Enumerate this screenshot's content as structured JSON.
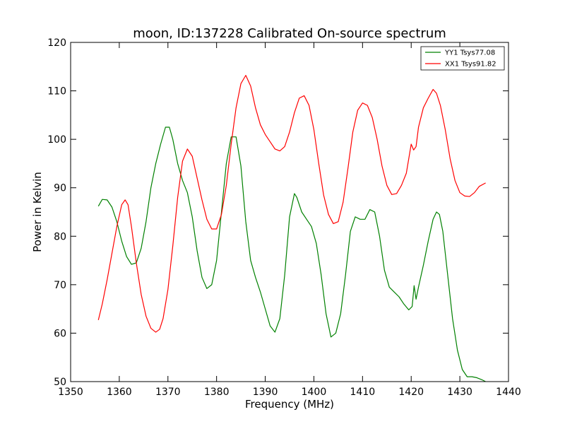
{
  "chart_data": {
    "type": "line",
    "title": "moon, ID:137228 Calibrated On-source spectrum",
    "xlabel": "Frequency (MHz)",
    "ylabel": "Power in Kelvin",
    "xlim": [
      1350,
      1440
    ],
    "ylim": [
      50,
      120
    ],
    "xticks": [
      1350,
      1360,
      1370,
      1380,
      1390,
      1400,
      1410,
      1420,
      1430,
      1440
    ],
    "yticks": [
      50,
      60,
      70,
      80,
      90,
      100,
      110,
      120
    ],
    "grid": false,
    "legend_position": "top-right",
    "series": [
      {
        "name": "YY1 Tsys77.08",
        "color": "#008000",
        "x": [
          1355.7,
          1356.5,
          1357.5,
          1358.5,
          1359.5,
          1360.5,
          1361.5,
          1362.5,
          1363.5,
          1364.5,
          1365.5,
          1366.5,
          1367.5,
          1368.5,
          1369.5,
          1370.3,
          1371.0,
          1372.0,
          1373.0,
          1374.0,
          1375.0,
          1376.0,
          1377.0,
          1378.0,
          1379.0,
          1380.0,
          1381.0,
          1382.0,
          1383.0,
          1384.0,
          1385.0,
          1386.0,
          1387.0,
          1388.0,
          1389.0,
          1390.0,
          1391.0,
          1392.0,
          1393.0,
          1394.0,
          1395.0,
          1396.0,
          1396.5,
          1397.5,
          1398.5,
          1399.5,
          1400.5,
          1401.5,
          1402.5,
          1403.5,
          1404.5,
          1405.5,
          1406.5,
          1407.5,
          1408.5,
          1409.5,
          1410.5,
          1411.5,
          1412.5,
          1413.5,
          1414.5,
          1415.5,
          1416.5,
          1417.5,
          1418.5,
          1419.5,
          1420.2,
          1420.6,
          1421.0,
          1421.5,
          1422.5,
          1423.5,
          1424.5,
          1425.2,
          1425.8,
          1426.5,
          1427.5,
          1428.5,
          1429.5,
          1430.5,
          1431.5,
          1432.5,
          1433.5,
          1434.5,
          1435.3
        ],
        "values": [
          86.2,
          87.6,
          87.5,
          86.0,
          83.0,
          79.0,
          75.8,
          74.2,
          74.5,
          77.5,
          83.0,
          90.0,
          95.0,
          99.0,
          102.5,
          102.5,
          100.0,
          95.0,
          91.5,
          89.0,
          84.0,
          77.0,
          71.5,
          69.2,
          70.0,
          75.0,
          85.0,
          95.0,
          100.5,
          100.5,
          94.5,
          83.0,
          75.0,
          71.5,
          68.5,
          65.0,
          61.5,
          60.2,
          63.0,
          72.0,
          84.0,
          88.8,
          88.0,
          85.0,
          83.5,
          82.0,
          78.5,
          72.0,
          64.0,
          59.2,
          60.0,
          64.0,
          72.0,
          81.0,
          84.0,
          83.5,
          83.5,
          85.5,
          85.0,
          80.0,
          73.0,
          69.5,
          68.5,
          67.5,
          66.0,
          64.8,
          65.5,
          69.8,
          67.0,
          69.5,
          74.0,
          79.0,
          83.5,
          85.0,
          84.5,
          81.0,
          72.0,
          63.0,
          56.5,
          52.5,
          51.0,
          51.0,
          50.8,
          50.4,
          50.0
        ]
      },
      {
        "name": "XX1 Tsys91.82",
        "color": "#ff0000",
        "x": [
          1355.7,
          1356.5,
          1357.5,
          1358.5,
          1359.5,
          1360.5,
          1361.2,
          1361.8,
          1362.5,
          1363.5,
          1364.5,
          1365.5,
          1366.5,
          1367.5,
          1368.3,
          1369.0,
          1370.0,
          1371.0,
          1372.0,
          1373.0,
          1374.0,
          1375.0,
          1376.0,
          1377.0,
          1378.0,
          1379.0,
          1380.0,
          1381.0,
          1382.0,
          1383.0,
          1384.0,
          1385.0,
          1386.0,
          1387.0,
          1388.0,
          1389.0,
          1390.0,
          1391.0,
          1392.0,
          1393.0,
          1394.0,
          1395.0,
          1396.0,
          1397.0,
          1398.0,
          1399.0,
          1400.0,
          1401.0,
          1402.0,
          1403.0,
          1404.0,
          1405.0,
          1406.0,
          1407.0,
          1408.0,
          1409.0,
          1410.0,
          1411.0,
          1412.0,
          1413.0,
          1414.0,
          1415.0,
          1416.0,
          1417.0,
          1418.0,
          1419.0,
          1420.0,
          1420.5,
          1421.0,
          1421.5,
          1422.5,
          1423.5,
          1424.5,
          1425.2,
          1426.0,
          1427.0,
          1428.0,
          1429.0,
          1430.0,
          1431.0,
          1432.0,
          1433.0,
          1434.0,
          1435.3
        ],
        "values": [
          62.7,
          66.0,
          71.0,
          76.5,
          82.0,
          86.5,
          87.5,
          86.5,
          82.0,
          74.5,
          68.0,
          63.5,
          61.0,
          60.2,
          60.8,
          63.0,
          69.0,
          78.0,
          88.0,
          95.5,
          98.0,
          96.5,
          92.0,
          87.5,
          83.5,
          81.5,
          81.5,
          84.5,
          90.5,
          99.0,
          106.5,
          111.5,
          113.2,
          111.0,
          106.5,
          103.0,
          101.0,
          99.5,
          98.0,
          97.6,
          98.5,
          101.5,
          105.5,
          108.5,
          109.0,
          107.0,
          102.0,
          95.0,
          88.5,
          84.5,
          82.6,
          83.0,
          87.0,
          94.0,
          101.5,
          106.0,
          107.5,
          107.0,
          104.5,
          100.0,
          94.5,
          90.5,
          88.6,
          88.8,
          90.5,
          93.0,
          99.0,
          97.8,
          98.5,
          102.5,
          106.5,
          108.5,
          110.3,
          109.5,
          107.0,
          102.0,
          96.0,
          91.5,
          89.0,
          88.3,
          88.2,
          89.0,
          90.3,
          91.0
        ]
      }
    ]
  }
}
